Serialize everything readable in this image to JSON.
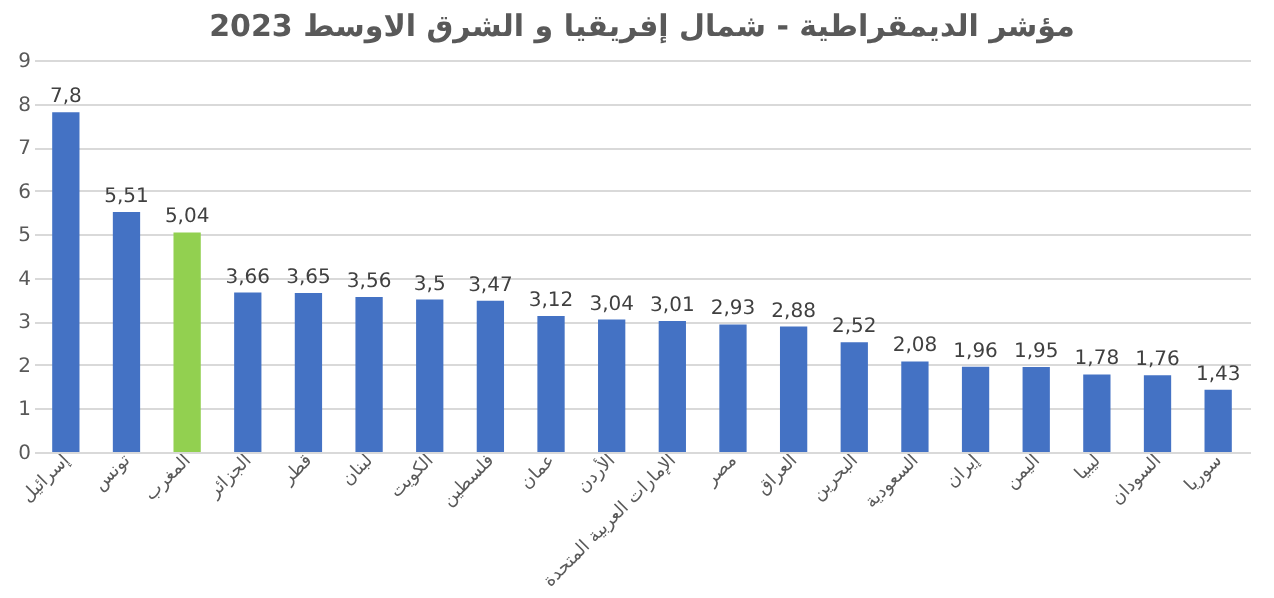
{
  "chart_data": {
    "type": "bar",
    "title": "مؤشر الديمقراطية - شمال إفريقيا و الشرق الاوسط 2023",
    "categories": [
      "إسرائيل",
      "تونس",
      "المغرب",
      "الجزائر",
      "قطر",
      "لبنان",
      "الكويت",
      "فلسطين",
      "عمان",
      "الأردن",
      "الإمارات العربية المتحدة",
      "مصر",
      "العراق",
      "البحرين",
      "السعودية",
      "إيران",
      "اليمن",
      "ليبيا",
      "السودان",
      "سوريا"
    ],
    "values": [
      7.8,
      5.51,
      5.04,
      3.66,
      3.65,
      3.56,
      3.5,
      3.47,
      3.12,
      3.04,
      3.01,
      2.93,
      2.88,
      2.52,
      2.08,
      1.96,
      1.95,
      1.78,
      1.76,
      1.43
    ],
    "value_labels": [
      "7,8",
      "5,51",
      "5,04",
      "3,66",
      "3,65",
      "3,56",
      "3,5",
      "3,47",
      "3,12",
      "3,04",
      "3,01",
      "2,93",
      "2,88",
      "2,52",
      "2,08",
      "1,96",
      "1,95",
      "1,78",
      "1,76",
      "1,43"
    ],
    "colors": [
      "#4472c4",
      "#4472c4",
      "#92d050",
      "#4472c4",
      "#4472c4",
      "#4472c4",
      "#4472c4",
      "#4472c4",
      "#4472c4",
      "#4472c4",
      "#4472c4",
      "#4472c4",
      "#4472c4",
      "#4472c4",
      "#4472c4",
      "#4472c4",
      "#4472c4",
      "#4472c4",
      "#4472c4",
      "#4472c4"
    ],
    "ylim": [
      0,
      9
    ],
    "yticks": [
      0,
      1,
      2,
      3,
      4,
      5,
      6,
      7,
      8,
      9
    ],
    "grid": "y"
  }
}
